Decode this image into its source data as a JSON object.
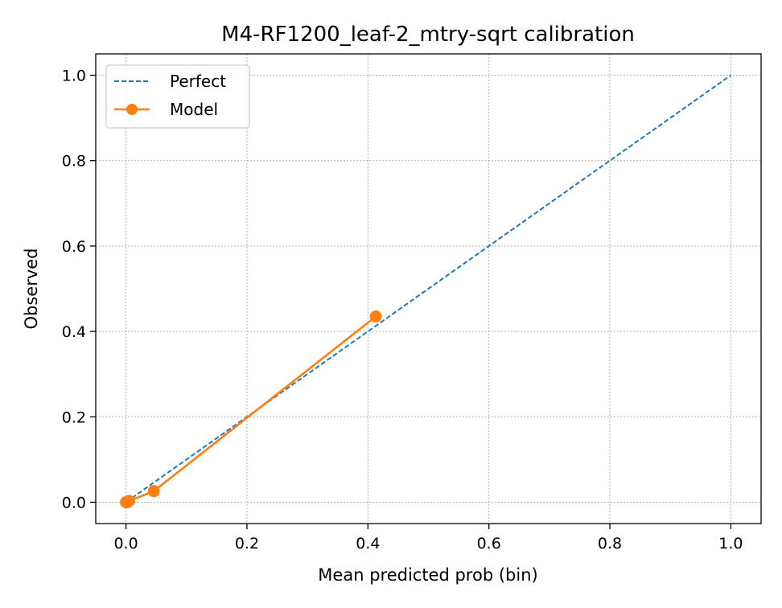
{
  "chart_data": {
    "type": "line",
    "title": "M4-RF1200_leaf-2_mtry-sqrt calibration",
    "xlabel": "Mean predicted prob (bin)",
    "ylabel": "Observed",
    "xlim": [
      -0.05,
      1.05
    ],
    "ylim": [
      -0.05,
      1.05
    ],
    "xticks": [
      0.0,
      0.2,
      0.4,
      0.6,
      0.8,
      1.0
    ],
    "yticks": [
      0.0,
      0.2,
      0.4,
      0.6,
      0.8,
      1.0
    ],
    "tick_labels": [
      "0.0",
      "0.2",
      "0.4",
      "0.6",
      "0.8",
      "1.0"
    ],
    "grid": true,
    "legend_position": "upper-left",
    "series": [
      {
        "name": "Perfect",
        "style": "dashed",
        "marker": "none",
        "color": "#1f77b4",
        "x": [
          0.0,
          1.0
        ],
        "y": [
          0.0,
          1.0
        ]
      },
      {
        "name": "Model",
        "style": "solid",
        "marker": "circle",
        "color": "#ff7f0e",
        "x": [
          0.0,
          0.001,
          0.002,
          0.005,
          0.046,
          0.413
        ],
        "y": [
          0.0,
          0.0,
          0.0,
          0.003,
          0.026,
          0.435
        ]
      }
    ]
  }
}
